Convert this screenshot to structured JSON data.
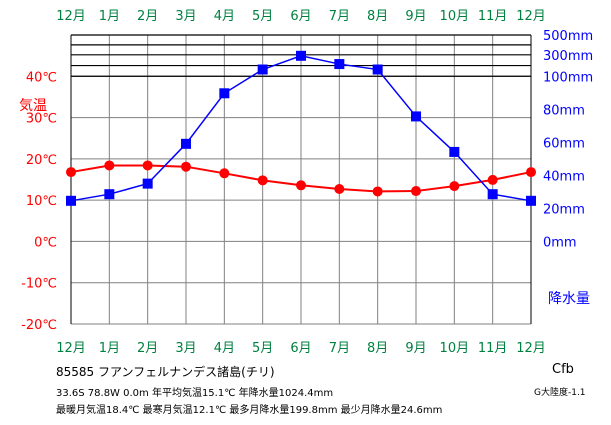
{
  "chart_data": {
    "type": "line",
    "months": [
      "12月",
      "1月",
      "2月",
      "3月",
      "4月",
      "5月",
      "6月",
      "7月",
      "8月",
      "9月",
      "10月",
      "11月",
      "12月"
    ],
    "temp_label": "気温",
    "precip_label": "降水量",
    "temp_ticks": [
      "-20℃",
      "-10℃",
      "0℃",
      "10℃",
      "20℃",
      "30℃",
      "40℃"
    ],
    "temp_tick_values": [
      -20,
      -10,
      0,
      10,
      20,
      30,
      40
    ],
    "precip_ticks_linear": [
      "0mm",
      "20mm",
      "40mm",
      "60mm",
      "80mm",
      "100mm"
    ],
    "precip_tick_values_linear": [
      0,
      20,
      40,
      60,
      80,
      100
    ],
    "precip_ticks_upper": [
      "300mm",
      "500mm"
    ],
    "temp_range": [
      -20,
      50
    ],
    "series": [
      {
        "name": "気温",
        "color": "#ff0000",
        "values": [
          16.8,
          18.4,
          18.4,
          18.1,
          16.5,
          14.8,
          13.6,
          12.7,
          12.1,
          12.2,
          13.4,
          14.9,
          16.8
        ]
      },
      {
        "name": "降水量",
        "color": "#0000ff",
        "values": [
          24.6,
          28.6,
          35.0,
          59.1,
          89.7,
          104.1,
          112.4,
          107.4,
          104.1,
          75.7,
          54.2,
          28.6,
          24.6
        ]
      }
    ]
  },
  "colors": {
    "month": "#008040",
    "temp": "#ff0000",
    "precip": "#0000ff",
    "grid": "#000000"
  },
  "info": {
    "station": "85585  フアンフェルナンデス諸島(チリ)",
    "detail1": "33.6S  78.8W  0.0m  年平均気温15.1℃  年降水量1024.4mm",
    "detail2": "最暖月気温18.4℃  最寒月気温12.1℃  最多月降水量199.8mm  最少月降水量24.6mm",
    "climate": "Cfb",
    "region": "G大陸度-1.1"
  }
}
